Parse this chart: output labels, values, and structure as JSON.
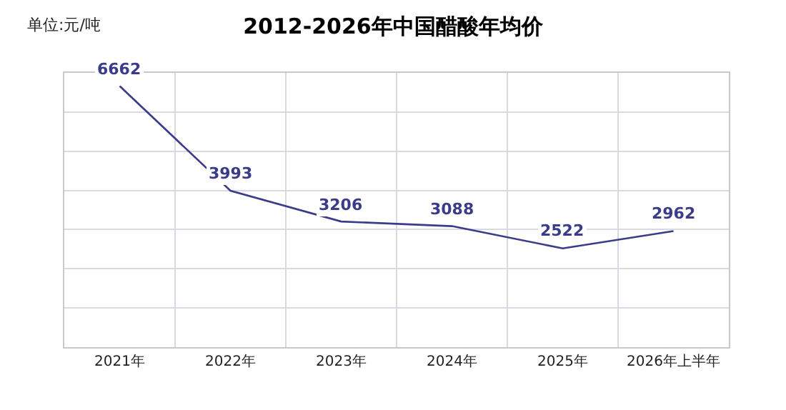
{
  "chart_data": {
    "type": "line",
    "title": "2012-2026年中国醋酸年均价",
    "ylabel": "单位:元/吨",
    "categories": [
      "2021年",
      "2022年",
      "2023年",
      "2024年",
      "2025年",
      "2026年上半年"
    ],
    "series": [
      {
        "color": "#3b3b8c",
        "values": [
          6662,
          3993,
          3206,
          3088,
          2522,
          2962
        ]
      }
    ],
    "ylim": [
      0,
      7000
    ],
    "yticks": [
      {
        "value": 0,
        "label": null
      },
      {
        "value": 1000,
        "label": null
      },
      {
        "value": 2000,
        "label": null
      },
      {
        "value": 3000,
        "label": null
      },
      {
        "value": 4000,
        "label": null
      },
      {
        "value": 5000,
        "label": null
      },
      {
        "value": 6000,
        "label": null
      },
      {
        "value": 7000,
        "label": null
      }
    ],
    "grid": true,
    "data_labels": true,
    "tick_labels": "x",
    "line_style": "solid"
  }
}
